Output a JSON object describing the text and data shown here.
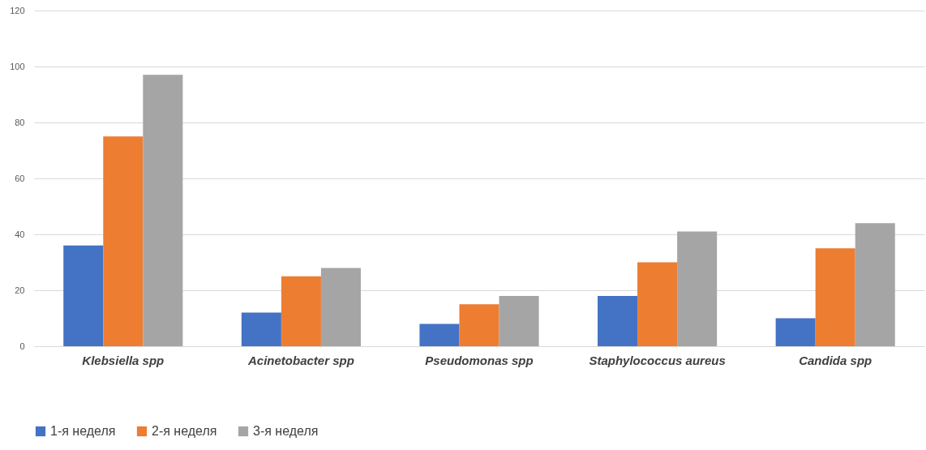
{
  "chart_data": {
    "type": "bar",
    "categories": [
      "Klebsiella spp",
      "Acinetobacter spp",
      "Pseudomonas spp",
      "Staphylococcus aureus",
      "Candida spp"
    ],
    "series": [
      {
        "name": "1-я неделя",
        "color": "#4472c4",
        "values": [
          36,
          12,
          8,
          18,
          10
        ]
      },
      {
        "name": "2-я неделя",
        "color": "#ed7d31",
        "values": [
          75,
          25,
          15,
          30,
          35
        ]
      },
      {
        "name": "3-я неделя",
        "color": "#a5a5a5",
        "values": [
          97,
          28,
          18,
          41,
          44
        ]
      }
    ],
    "ylim": [
      0,
      120
    ],
    "yticks": [
      0,
      20,
      40,
      60,
      80,
      100,
      120
    ],
    "grid": "y",
    "legend": "bottom"
  }
}
